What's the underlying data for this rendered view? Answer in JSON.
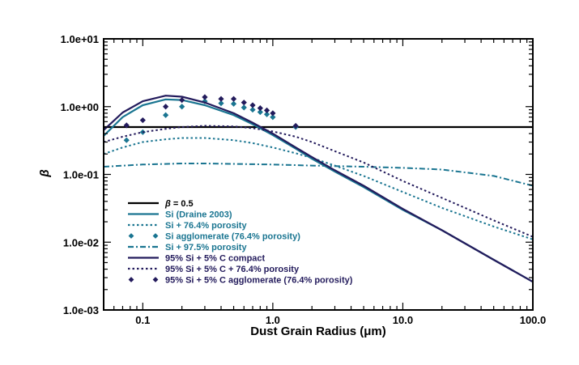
{
  "chart_data": {
    "type": "line",
    "title": "",
    "xlabel": "Dust Grain Radius (μm)",
    "ylabel": "β",
    "xscale": "log",
    "yscale": "log",
    "xlim": [
      0.05,
      100.0
    ],
    "ylim": [
      0.001,
      10.0
    ],
    "x_tick_labels": [
      {
        "value": 0.1,
        "label": "0.1"
      },
      {
        "value": 1.0,
        "label": "1.0"
      },
      {
        "value": 10.0,
        "label": "10.0"
      },
      {
        "value": 100.0,
        "label": "100.0"
      }
    ],
    "y_tick_labels": [
      {
        "value": 0.001,
        "label": "1.0e-03"
      },
      {
        "value": 0.01,
        "label": "1.0e-02"
      },
      {
        "value": 0.1,
        "label": "1.0e-01"
      },
      {
        "value": 1.0,
        "label": "1.0e+00"
      },
      {
        "value": 10.0,
        "label": "1.0e+01"
      }
    ],
    "legend_position": "bottom-left",
    "series": [
      {
        "name": "β = 0.5",
        "legend_prefix": "β",
        "legend_suffix": " = 0.5",
        "style": "solid",
        "color": "#000000",
        "x": [
          0.05,
          100.0
        ],
        "y": [
          0.5,
          0.5
        ]
      },
      {
        "name": "Si  (Draine 2003)",
        "style": "solid",
        "color": "#1a7591",
        "x": [
          0.05,
          0.07,
          0.1,
          0.15,
          0.2,
          0.3,
          0.5,
          0.7,
          1.0,
          1.5,
          2.0,
          3.0,
          5.0,
          10.0,
          20.0,
          50.0,
          100.0
        ],
        "y": [
          0.37,
          0.7,
          1.05,
          1.28,
          1.25,
          1.05,
          0.75,
          0.55,
          0.38,
          0.24,
          0.17,
          0.11,
          0.065,
          0.03,
          0.015,
          0.0055,
          0.0026
        ]
      },
      {
        "name": "Si + 76.4% porosity",
        "style": "dotted",
        "color": "#1a7591",
        "x": [
          0.05,
          0.07,
          0.1,
          0.15,
          0.2,
          0.3,
          0.5,
          0.7,
          1.0,
          1.5,
          2.0,
          3.0,
          5.0,
          10.0,
          20.0,
          50.0,
          100.0
        ],
        "y": [
          0.2,
          0.25,
          0.3,
          0.33,
          0.345,
          0.345,
          0.32,
          0.29,
          0.25,
          0.205,
          0.175,
          0.135,
          0.095,
          0.055,
          0.032,
          0.017,
          0.011
        ]
      },
      {
        "name": "Si agglomerate (76.4% porosity)",
        "style": "markers",
        "color": "#1a7591",
        "x": [
          0.075,
          0.1,
          0.15,
          0.2,
          0.3,
          0.4,
          0.5,
          0.6,
          0.7,
          0.8,
          0.9,
          1.0,
          1.5
        ],
        "y": [
          0.32,
          0.42,
          0.75,
          1.0,
          1.2,
          1.12,
          1.1,
          0.97,
          0.9,
          0.83,
          0.77,
          0.7,
          0.5
        ]
      },
      {
        "name": "Si + 97.5% porosity",
        "style": "dashdot",
        "color": "#1a7591",
        "x": [
          0.05,
          0.1,
          0.2,
          0.3,
          0.5,
          1.0,
          2.0,
          5.0,
          10.0,
          20.0,
          50.0,
          100.0
        ],
        "y": [
          0.13,
          0.14,
          0.145,
          0.145,
          0.143,
          0.14,
          0.135,
          0.13,
          0.125,
          0.118,
          0.095,
          0.068
        ]
      },
      {
        "name": "95% Si + 5% C compact",
        "style": "solid",
        "color": "#231b5c",
        "x": [
          0.05,
          0.07,
          0.1,
          0.15,
          0.2,
          0.3,
          0.5,
          0.7,
          1.0,
          1.5,
          2.0,
          3.0,
          5.0,
          10.0,
          20.0,
          50.0,
          100.0
        ],
        "y": [
          0.45,
          0.82,
          1.2,
          1.45,
          1.4,
          1.15,
          0.8,
          0.58,
          0.4,
          0.25,
          0.18,
          0.115,
          0.068,
          0.031,
          0.015,
          0.0055,
          0.0026
        ]
      },
      {
        "name": "95% Si + 5% C + 76.4% porosity",
        "style": "dotted",
        "color": "#231b5c",
        "x": [
          0.05,
          0.07,
          0.1,
          0.15,
          0.2,
          0.3,
          0.5,
          0.7,
          1.0,
          1.5,
          2.0,
          3.0,
          5.0,
          10.0,
          20.0,
          50.0,
          100.0
        ],
        "y": [
          0.3,
          0.36,
          0.42,
          0.47,
          0.5,
          0.52,
          0.51,
          0.48,
          0.43,
          0.36,
          0.3,
          0.22,
          0.15,
          0.08,
          0.045,
          0.021,
          0.012
        ]
      },
      {
        "name": "95% Si + 5% C agglomerate (76.4% porosity)",
        "style": "markers",
        "color": "#231b5c",
        "x": [
          0.075,
          0.1,
          0.15,
          0.2,
          0.3,
          0.4,
          0.5,
          0.6,
          0.7,
          0.8,
          0.9,
          1.0,
          1.5
        ],
        "y": [
          0.53,
          0.63,
          1.0,
          1.25,
          1.38,
          1.3,
          1.3,
          1.15,
          1.05,
          0.95,
          0.88,
          0.8,
          0.52
        ]
      }
    ]
  }
}
